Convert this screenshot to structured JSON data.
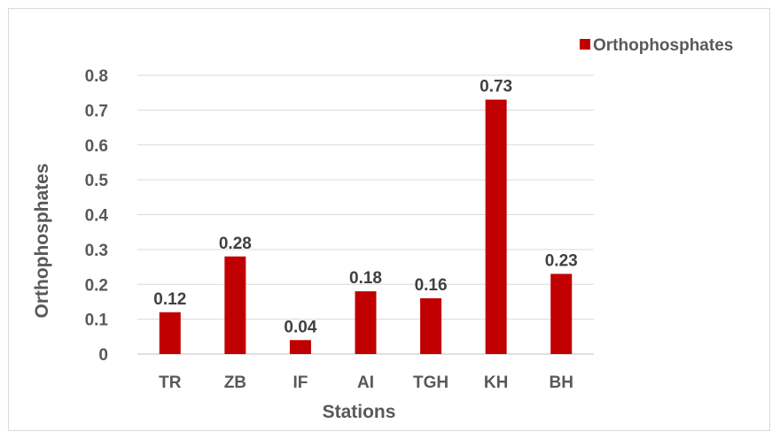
{
  "chart_data": {
    "type": "bar",
    "categories": [
      "TR",
      "ZB",
      "IF",
      "AI",
      "TGH",
      "KH",
      "BH"
    ],
    "series": [
      {
        "name": "Orthophosphates",
        "values": [
          0.12,
          0.28,
          0.04,
          0.18,
          0.16,
          0.73,
          0.23
        ]
      }
    ],
    "data_labels": [
      "0.12",
      "0.28",
      "0.04",
      "0.18",
      "0.16",
      "0.73",
      "0.23"
    ],
    "yticks": [
      "0",
      "0.1",
      "0.2",
      "0.3",
      "0.4",
      "0.5",
      "0.6",
      "0.7",
      "0.8"
    ],
    "title": "",
    "xlabel": "Stations",
    "ylabel": "Orthophosphates",
    "ylim": [
      0,
      0.8
    ],
    "grid": true,
    "legend_position": "top-right",
    "bar_color": "#C00000",
    "grid_color": "#D9D9D9"
  }
}
